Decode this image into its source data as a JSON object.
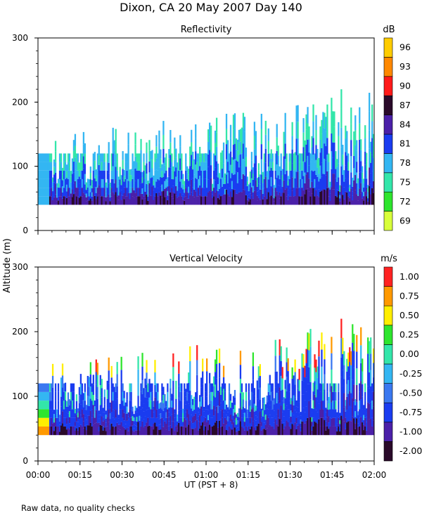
{
  "page": {
    "title": "Dixon, CA 20 May 2007  Day 140",
    "ylabel": "Altitude (m)",
    "xlabel": "UT  (PST + 8)",
    "footnote": "Raw data, no quality checks"
  },
  "chart_data": [
    {
      "type": "heatmap",
      "title": "Reflectivity",
      "ylabel": "Altitude (m)",
      "ylim": [
        0,
        300
      ],
      "yticks": [
        "0",
        "100",
        "200",
        "300"
      ],
      "xlim_minutes": [
        0,
        120
      ],
      "xticks": [
        "00:00",
        "00:15",
        "00:30",
        "00:45",
        "01:00",
        "01:15",
        "01:30",
        "01:45",
        "02:00"
      ],
      "colorbar_unit": "dB",
      "colorbar_levels": [
        "69",
        "72",
        "75",
        "78",
        "81",
        "84",
        "87",
        "90",
        "93",
        "96"
      ],
      "colorbar_colors": [
        "#d8ff3a",
        "#2ee52e",
        "#33e6aa",
        "#33b6f2",
        "#1a3cf0",
        "#4b20a8",
        "#2a0a2a",
        "#ff1a1a",
        "#ff8800",
        "#ffcc00"
      ],
      "base_altitude_m": 40,
      "typical_top_altitude_m": 120,
      "max_echo_altitude_m": 220
    },
    {
      "type": "heatmap",
      "title": "Vertical Velocity",
      "ylabel": "Altitude (m)",
      "ylim": [
        0,
        300
      ],
      "yticks": [
        "0",
        "100",
        "200",
        "300"
      ],
      "xlim_minutes": [
        0,
        120
      ],
      "xticks": [
        "00:00",
        "00:15",
        "00:30",
        "00:45",
        "01:00",
        "01:15",
        "01:30",
        "01:45",
        "02:00"
      ],
      "xlabel": "UT  (PST + 8)",
      "colorbar_unit": "m/s",
      "colorbar_levels": [
        "-2.00",
        "-1.00",
        "-0.75",
        "-0.50",
        "-0.25",
        "0.00",
        "0.25",
        "0.50",
        "0.75",
        "1.00"
      ],
      "colorbar_colors": [
        "#2a0a2a",
        "#4b20a8",
        "#1a3cf0",
        "#3a78f0",
        "#33b6f2",
        "#33e6aa",
        "#2ee52e",
        "#ffee00",
        "#ff9900",
        "#ff2222"
      ],
      "base_altitude_m": 40,
      "typical_top_altitude_m": 120,
      "max_echo_altitude_m": 220
    }
  ]
}
